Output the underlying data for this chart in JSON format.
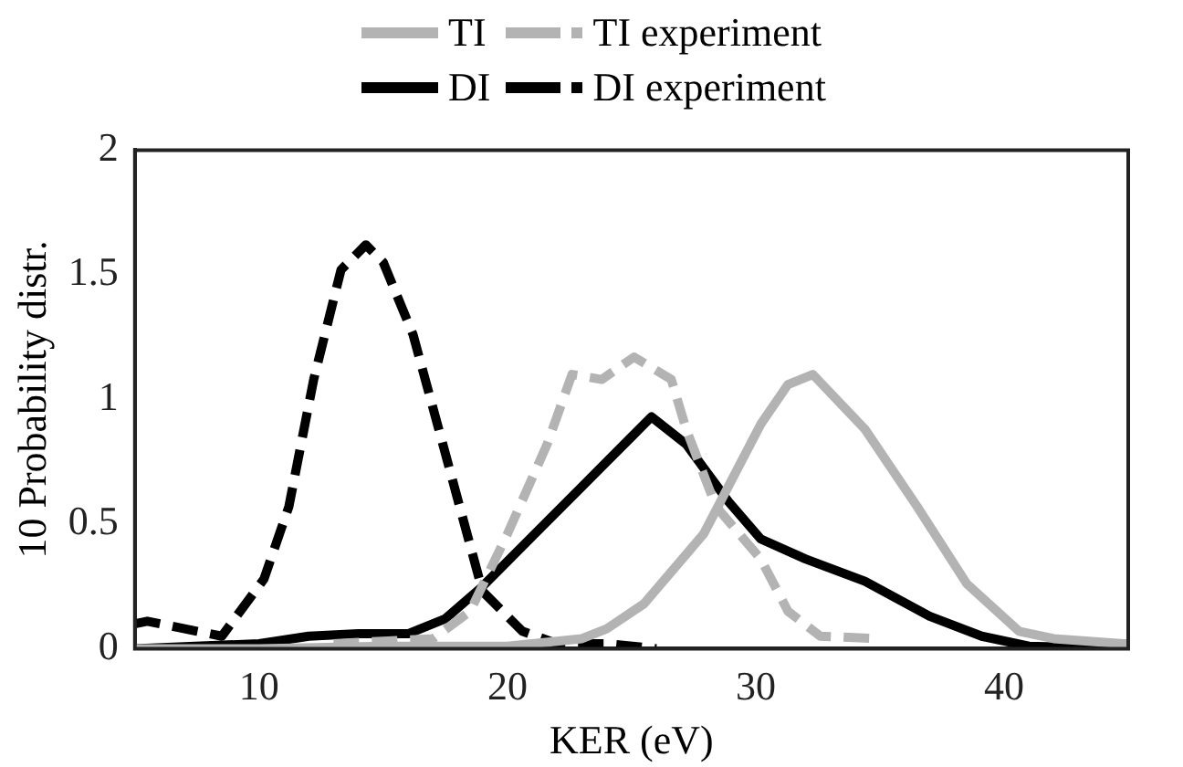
{
  "chart_data": {
    "type": "line",
    "xlabel": "KER (eV)",
    "ylabel": "10 Probability distr.",
    "xlim": [
      5,
      45
    ],
    "xticks": [
      10,
      20,
      30,
      40
    ],
    "ylim": [
      0,
      2
    ],
    "yticks": [
      0,
      0.5,
      1,
      1.5,
      2
    ],
    "grid": false,
    "legend": "top",
    "marker": "none",
    "series": [
      {
        "name": "TI",
        "color": "#b3b3b3",
        "line_style": "solid",
        "x": [
          5,
          10,
          15,
          20,
          23,
          24,
          25.5,
          27.9,
          30.2,
          31.3,
          32.3,
          34.4,
          36.5,
          38.5,
          40.6,
          42,
          44.8,
          45
        ],
        "values": [
          0,
          0,
          0.01,
          0.01,
          0.04,
          0.08,
          0.18,
          0.46,
          0.9,
          1.06,
          1.1,
          0.88,
          0.57,
          0.26,
          0.07,
          0.04,
          0.02,
          0.02
        ]
      },
      {
        "name": "TI experiment",
        "color": "#b3b3b3",
        "line_style": "dashed",
        "x": [
          13,
          15,
          17,
          18.5,
          20,
          21.6,
          22.6,
          23.8,
          25.1,
          26.6,
          27.2,
          28.4,
          30.2,
          31.3,
          32.6,
          34.9
        ],
        "values": [
          0.02,
          0.03,
          0.04,
          0.15,
          0.46,
          0.82,
          1.1,
          1.08,
          1.17,
          1.08,
          0.88,
          0.57,
          0.36,
          0.15,
          0.05,
          0.04
        ]
      },
      {
        "name": "DI",
        "color": "#000000",
        "line_style": "solid",
        "x": [
          5,
          10,
          12,
          14,
          16,
          17.5,
          19,
          21,
          23,
          25,
          25.8,
          27.2,
          28.9,
          30.2,
          32,
          34.4,
          37,
          39.1,
          41,
          45
        ],
        "values": [
          0,
          0.02,
          0.05,
          0.06,
          0.06,
          0.12,
          0.25,
          0.45,
          0.65,
          0.85,
          0.93,
          0.82,
          0.59,
          0.44,
          0.36,
          0.27,
          0.13,
          0.05,
          0.01,
          0
        ]
      },
      {
        "name": "DI experiment",
        "color": "#000000",
        "line_style": "dashed",
        "x": [
          5,
          5.5,
          7.5,
          8.5,
          10.2,
          11.2,
          12.2,
          13.3,
          14.3,
          15,
          16.2,
          17.4,
          19,
          20.6,
          22,
          24,
          26
        ],
        "values": [
          0.1,
          0.11,
          0.07,
          0.05,
          0.28,
          0.57,
          1.08,
          1.52,
          1.62,
          1.55,
          1.26,
          0.82,
          0.23,
          0.07,
          0.02,
          0.02,
          0
        ]
      }
    ]
  }
}
